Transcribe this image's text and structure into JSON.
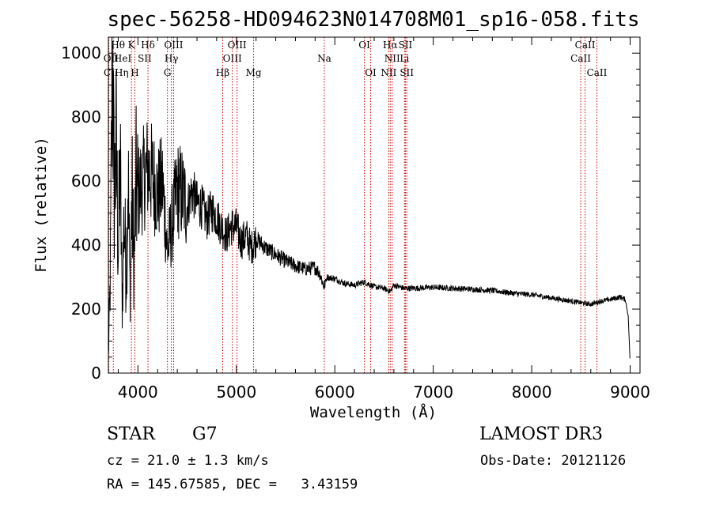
{
  "chart_data": {
    "type": "line",
    "title": "spec-56258-HD094623N014708M01_sp16-058.fits",
    "xlabel": "Wavelength (Å)",
    "ylabel": "Flux (relative)",
    "xlim": [
      3700,
      9100
    ],
    "ylim": [
      0,
      1050
    ],
    "xticks": [
      4000,
      5000,
      6000,
      7000,
      8000,
      9000
    ],
    "yticks": [
      0,
      200,
      400,
      600,
      800,
      1000
    ],
    "series": [
      {
        "name": "flux",
        "x": [
          3700,
          3720,
          3740,
          3760,
          3780,
          3800,
          3820,
          3840,
          3860,
          3880,
          3900,
          3920,
          3940,
          3960,
          3980,
          4000,
          4050,
          4100,
          4150,
          4200,
          4250,
          4300,
          4350,
          4400,
          4450,
          4500,
          4550,
          4600,
          4650,
          4700,
          4750,
          4800,
          4850,
          4900,
          4950,
          5000,
          5050,
          5100,
          5150,
          5200,
          5300,
          5400,
          5500,
          5600,
          5700,
          5800,
          5850,
          5890,
          5920,
          6000,
          6100,
          6200,
          6300,
          6400,
          6500,
          6563,
          6600,
          6700,
          6800,
          7000,
          7200,
          7400,
          7600,
          7800,
          8000,
          8200,
          8400,
          8500,
          8600,
          8700,
          8800,
          8900,
          8950,
          8980,
          9000
        ],
        "y": [
          50,
          300,
          1000,
          550,
          700,
          380,
          650,
          200,
          500,
          300,
          620,
          250,
          560,
          330,
          580,
          560,
          600,
          640,
          610,
          560,
          590,
          380,
          470,
          575,
          560,
          520,
          570,
          530,
          520,
          480,
          510,
          490,
          455,
          430,
          460,
          455,
          410,
          430,
          390,
          420,
          390,
          370,
          350,
          335,
          325,
          330,
          310,
          270,
          300,
          295,
          280,
          275,
          285,
          270,
          265,
          255,
          275,
          265,
          265,
          268,
          265,
          262,
          258,
          250,
          245,
          235,
          225,
          220,
          215,
          225,
          230,
          238,
          230,
          180,
          30
        ]
      }
    ],
    "line_markers": [
      {
        "name": "HeI",
        "x": 3705,
        "ymax": 600
      },
      {
        "name": "HeII",
        "x": 3750,
        "ymax": 600
      },
      {
        "name": "CaII K",
        "x": 3934,
        "ymax": 600
      },
      {
        "name": "CaII H",
        "x": 3969,
        "ymax": 600
      },
      {
        "name": "Hδ",
        "x": 4102,
        "ymax": 600
      },
      {
        "name": "G",
        "x": 4300,
        "ymax": 600
      },
      {
        "name": "Hγ",
        "x": 4340,
        "ymax": 600
      },
      {
        "name": "OIII",
        "x": 4363,
        "ymax": 600
      },
      {
        "name": "Hβ",
        "x": 4861,
        "ymax": 600
      },
      {
        "name": "OIII",
        "x": 4959,
        "ymax": 600
      },
      {
        "name": "OIII",
        "x": 5007,
        "ymax": 600
      },
      {
        "name": "Mg",
        "x": 5175,
        "ymax": 600
      },
      {
        "name": "Na",
        "x": 5893,
        "ymax": 600
      },
      {
        "name": "OI",
        "x": 6300,
        "ymax": 600
      },
      {
        "name": "OI",
        "x": 6364,
        "ymax": 600
      },
      {
        "name": "NII",
        "x": 6548,
        "ymax": 600
      },
      {
        "name": "Hα",
        "x": 6563,
        "ymax": 600
      },
      {
        "name": "NII",
        "x": 6583,
        "ymax": 600
      },
      {
        "name": "Li",
        "x": 6708,
        "ymax": 600
      },
      {
        "name": "SII",
        "x": 6717,
        "ymax": 600
      },
      {
        "name": "SII",
        "x": 6731,
        "ymax": 600
      },
      {
        "name": "CaII",
        "x": 8498,
        "ymax": 600
      },
      {
        "name": "CaII",
        "x": 8542,
        "ymax": 600
      },
      {
        "name": "CaII",
        "x": 8662,
        "ymax": 600
      }
    ],
    "line_labels": [
      {
        "text": "OII",
        "x": 3727,
        "row": 1
      },
      {
        "text": "CII",
        "x": 3727,
        "row": 2
      },
      {
        "text": "Hθ",
        "x": 3798,
        "row": 0
      },
      {
        "text": "HeI",
        "x": 3845,
        "row": 1
      },
      {
        "text": "Hη",
        "x": 3835,
        "row": 2
      },
      {
        "text": "K",
        "x": 3934,
        "row": 0
      },
      {
        "text": "H",
        "x": 3969,
        "row": 2
      },
      {
        "text": "SII",
        "x": 4069,
        "row": 1
      },
      {
        "text": "Hδ",
        "x": 4102,
        "row": 0
      },
      {
        "text": "OIII",
        "x": 4363,
        "row": 0
      },
      {
        "text": "Hγ",
        "x": 4340,
        "row": 1
      },
      {
        "text": "G",
        "x": 4300,
        "row": 2
      },
      {
        "text": "Hβ",
        "x": 4861,
        "row": 2
      },
      {
        "text": "OIII",
        "x": 5007,
        "row": 0
      },
      {
        "text": "OIII",
        "x": 4959,
        "row": 1
      },
      {
        "text": "Mg",
        "x": 5175,
        "row": 2
      },
      {
        "text": "Na",
        "x": 5893,
        "row": 1
      },
      {
        "text": "OI",
        "x": 6300,
        "row": 0
      },
      {
        "text": "OI",
        "x": 6364,
        "row": 2
      },
      {
        "text": "Hα",
        "x": 6563,
        "row": 0
      },
      {
        "text": "SII",
        "x": 6717,
        "row": 0
      },
      {
        "text": "NII",
        "x": 6583,
        "row": 1
      },
      {
        "text": "Li",
        "x": 6708,
        "row": 1
      },
      {
        "text": "NII",
        "x": 6548,
        "row": 2
      },
      {
        "text": "SII",
        "x": 6731,
        "row": 2
      },
      {
        "text": "CaII",
        "x": 8542,
        "row": 0
      },
      {
        "text": "CaII",
        "x": 8498,
        "row": 1
      },
      {
        "text": "CaII",
        "x": 8662,
        "row": 2
      }
    ]
  },
  "info": {
    "object_class": "STAR",
    "subclass": "G7",
    "survey": "LAMOST DR3",
    "cz": "cz = 21.0 ± 1.3 km/s",
    "obs_date": "Obs-Date: 20121126",
    "coords": "RA = 145.67585, DEC =   3.43159"
  },
  "colors": {
    "spectrum": "#000000",
    "marker": "#cc0000",
    "axis": "#000000"
  }
}
